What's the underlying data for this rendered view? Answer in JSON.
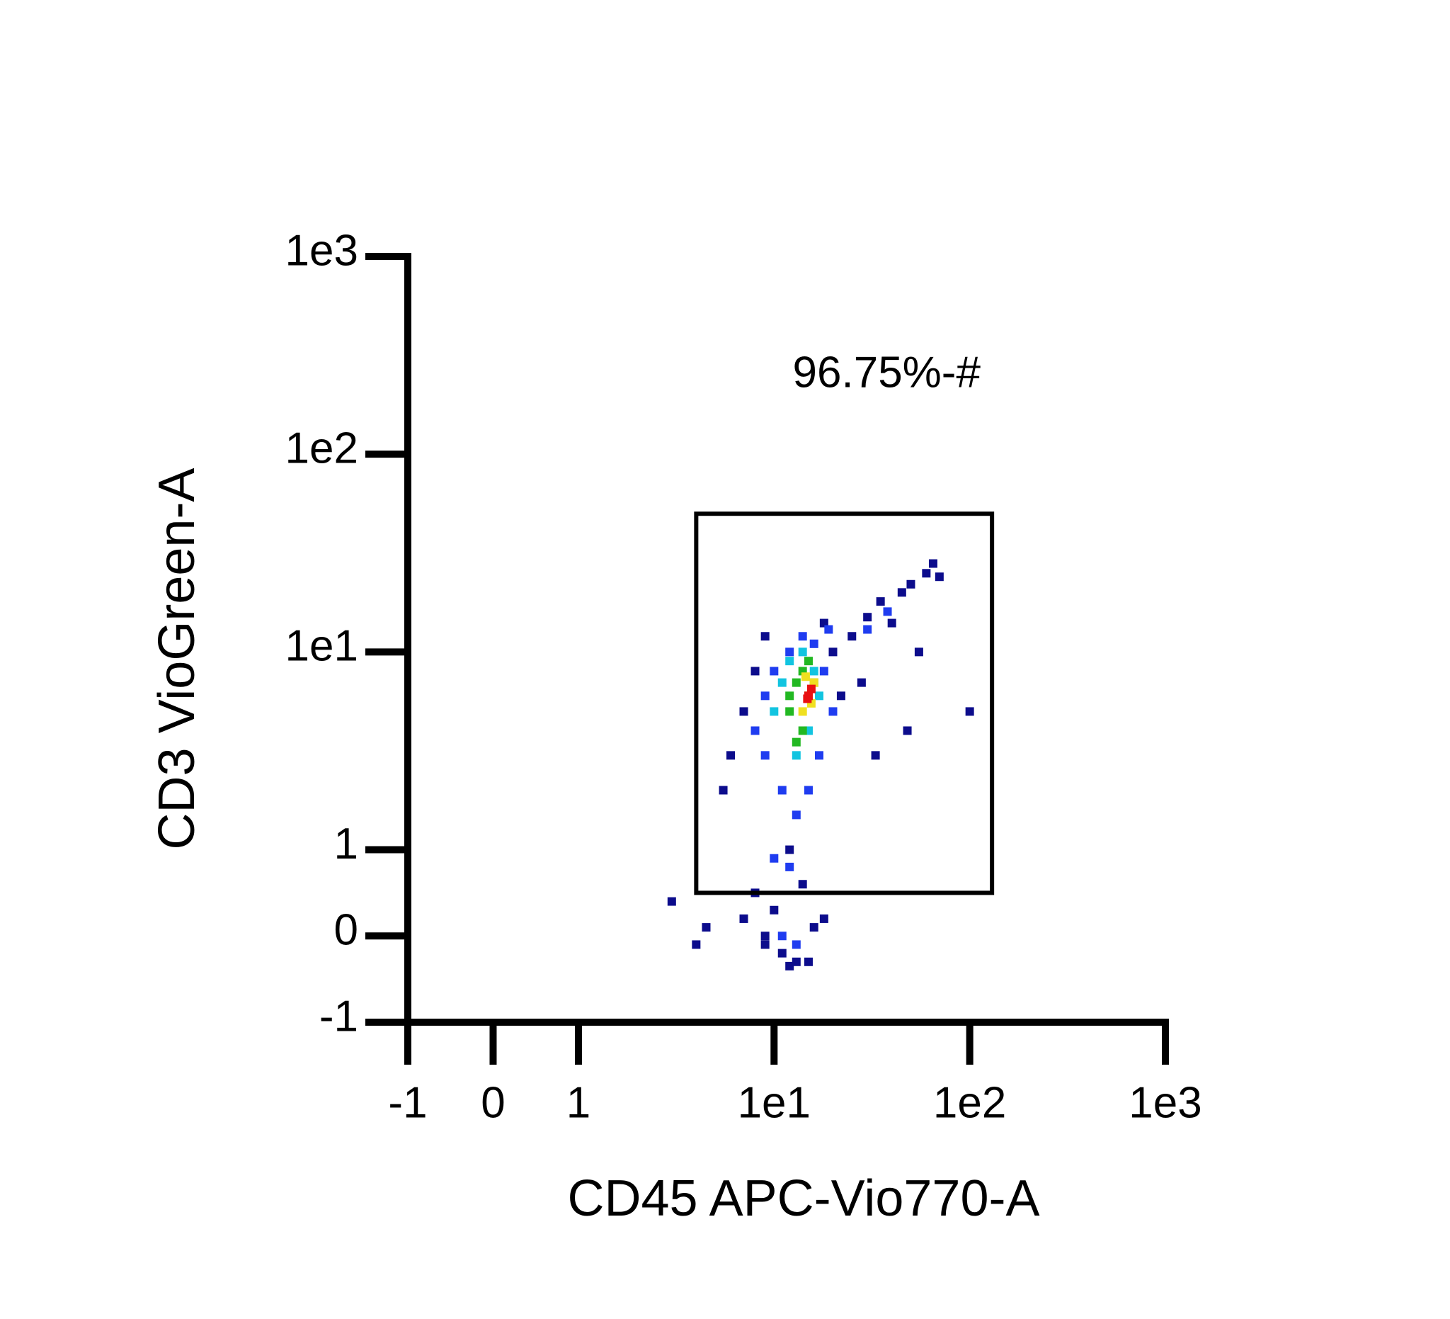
{
  "chart_data": {
    "type": "scatter",
    "xlabel": "CD45 APC-Vio770-A",
    "ylabel": "CD3 VioGreen-A",
    "xscale": "symlog",
    "yscale": "symlog",
    "xlim": [
      -1,
      1000
    ],
    "ylim": [
      -1,
      1000
    ],
    "xticks": [
      -1,
      0,
      1,
      {
        "value": 10,
        "label": "1e1"
      },
      {
        "value": 100,
        "label": "1e2"
      },
      {
        "value": 1000,
        "label": "1e3"
      }
    ],
    "yticks": [
      -1,
      0,
      1,
      {
        "value": 10,
        "label": "1e1"
      },
      {
        "value": 100,
        "label": "1e2"
      },
      {
        "value": 1000,
        "label": "1e3"
      }
    ],
    "gate": {
      "x": [
        4,
        130
      ],
      "y": [
        0.5,
        50
      ],
      "label": "96.75%-#"
    },
    "series": [
      {
        "color": "#0c0c8c",
        "x": [
          6,
          7,
          8,
          5.5,
          9,
          20,
          22,
          18,
          25,
          30,
          35,
          40,
          45,
          50,
          60,
          65,
          70,
          55,
          28,
          33,
          12,
          10,
          14,
          8,
          11,
          13,
          16,
          9,
          7,
          3,
          4,
          4.5,
          12,
          15,
          9,
          18,
          100,
          48
        ],
        "y": [
          3,
          5,
          8,
          2,
          12,
          10,
          6,
          14,
          12,
          15,
          18,
          14,
          20,
          22,
          25,
          28,
          24,
          10,
          7,
          3,
          1,
          0.3,
          0.6,
          0.5,
          -0.2,
          -0.3,
          0.1,
          -0.1,
          0.2,
          0.4,
          -0.1,
          0.1,
          -0.35,
          -0.3,
          0,
          0.2,
          5,
          4
        ]
      },
      {
        "color": "#1f3cf0",
        "x": [
          8,
          9,
          10,
          12,
          14,
          16,
          18,
          20,
          11,
          13,
          15,
          17,
          10,
          12,
          9,
          19,
          30,
          38,
          11,
          13
        ],
        "y": [
          4,
          6,
          8,
          10,
          12,
          11,
          8,
          5,
          2,
          1.5,
          2,
          3,
          0.9,
          0.8,
          3,
          13,
          13,
          16,
          0,
          -0.1
        ]
      },
      {
        "color": "#12c4e0",
        "x": [
          10,
          11,
          12,
          14,
          16,
          17,
          13,
          15
        ],
        "y": [
          5,
          7,
          9,
          10,
          8,
          6,
          3,
          4
        ]
      },
      {
        "color": "#22b822",
        "x": [
          12,
          13,
          14,
          15,
          16,
          13,
          14,
          15,
          12
        ],
        "y": [
          5,
          7,
          8,
          6,
          7,
          3.5,
          4,
          9,
          6
        ]
      },
      {
        "color": "#f0e020",
        "x": [
          14,
          15,
          16,
          14.5,
          15.5
        ],
        "y": [
          5,
          6,
          7,
          7.5,
          5.5
        ]
      },
      {
        "color": "#e81010",
        "x": [
          15,
          15.5,
          14.8
        ],
        "y": [
          6,
          6.5,
          5.8
        ]
      }
    ]
  }
}
